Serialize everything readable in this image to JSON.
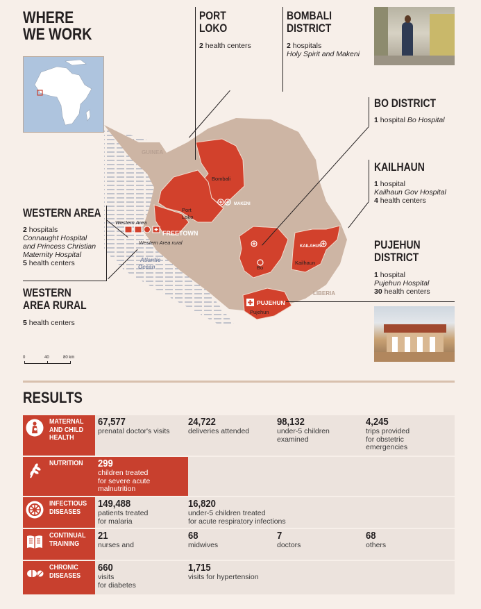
{
  "title": "WHERE\nWE WORK",
  "title_lines": [
    "WHERE",
    "WE WORK"
  ],
  "regions": {
    "port_loko": {
      "title_lines": [
        "PORT",
        "LOKO"
      ],
      "count": "2",
      "desc": "health centers"
    },
    "bombali": {
      "title_lines": [
        "BOMBALI",
        "DISTRICT"
      ],
      "count": "2",
      "desc": "hospitals",
      "names": "Holy Spirit and Makeni"
    },
    "bo": {
      "title": "BO DISTRICT",
      "count": "1",
      "desc": "hospital",
      "names": "Bo Hospital"
    },
    "kailahun": {
      "title": "KAILHAUN",
      "count1": "1",
      "desc1": "hospital",
      "names": "Kailhaun Gov Hospital",
      "count2": "4",
      "desc2": "health centers"
    },
    "pujehun": {
      "title_lines": [
        "PUJEHUN",
        "DISTRICT"
      ],
      "count1": "1",
      "desc1": "hospital",
      "names": "Pujehun Hospital",
      "count2": "30",
      "desc2": "health centers"
    },
    "western_area": {
      "title": "WESTERN AREA",
      "count1": "2",
      "desc1": "hospitals",
      "names_lines": [
        "Connaught Hospital",
        "and Princess Christian",
        "Maternity Hospital"
      ],
      "count2": "5",
      "desc2": "health centers"
    },
    "western_area_rural": {
      "title_lines": [
        "WESTERN",
        "AREA RURAL"
      ],
      "count": "5",
      "desc": "health centers"
    }
  },
  "map": {
    "labels": {
      "guinea": "GUINEA",
      "liberia": "LIBERIA",
      "atlantic": "Atlantic\nOcean",
      "atlantic_lines": [
        "Atlantic",
        "Ocean"
      ],
      "western_area": "Western Area",
      "western_area_rural": "Western Area rural",
      "freetown": "FREETOWN",
      "port_loko": "Port\nLoko",
      "port_loko_lines": [
        "Port",
        "Loko"
      ],
      "bombali": "Bombali",
      "makeni": "MAKENI",
      "bo": "Bo",
      "kailahun": "KAILAHUN",
      "kailhaun_region": "Kailhaun",
      "pujehun_city": "PUJEHUN",
      "pujehun_region": "Pujehun"
    },
    "scale": {
      "ticks": [
        "0",
        "40",
        "80 km"
      ]
    },
    "colors": {
      "land": "#cdb5a4",
      "served": "#d2412c",
      "water_lines": "#7e8aa6"
    }
  },
  "results": {
    "title": "RESULTS",
    "rows": [
      {
        "icon": "maternal-icon",
        "label": "MATERNAL AND CHILD HEALTH",
        "cells": [
          {
            "n": "67,577",
            "d": "prenatal doctor's visits"
          },
          {
            "n": "24,722",
            "d": "deliveries attended"
          },
          {
            "n": "98,132",
            "d": "under-5 children\nexamined"
          },
          {
            "n": "4,245",
            "d": "trips provided\nfor obstetric\nemergencies"
          }
        ]
      },
      {
        "icon": "wheat-icon",
        "label": "NUTRITION",
        "cells": [
          {
            "n": "299",
            "d": "children treated\nfor severe acute\nmalnutrition"
          }
        ]
      },
      {
        "icon": "virus-icon",
        "label": "INFECTIOUS DISEASES",
        "cells": [
          {
            "n": "149,488",
            "d": "patients treated\nfor malaria"
          },
          {
            "n": "16,820",
            "d": "under-5 children treated\nfor acute respiratory infections"
          }
        ]
      },
      {
        "icon": "book-icon",
        "label": "CONTINUAL TRAINING",
        "cells": [
          {
            "n": "21",
            "d": "nurses and"
          },
          {
            "n": "68",
            "d": "midwives"
          },
          {
            "n": "7",
            "d": "doctors"
          },
          {
            "n": "68",
            "d": "others"
          }
        ]
      },
      {
        "icon": "pill-icon",
        "label": "CHRONIC DISEASES",
        "cells": [
          {
            "n": "660",
            "d": "visits\nfor diabetes"
          },
          {
            "n": "1,715",
            "d": "visits for hypertension"
          }
        ]
      }
    ]
  }
}
